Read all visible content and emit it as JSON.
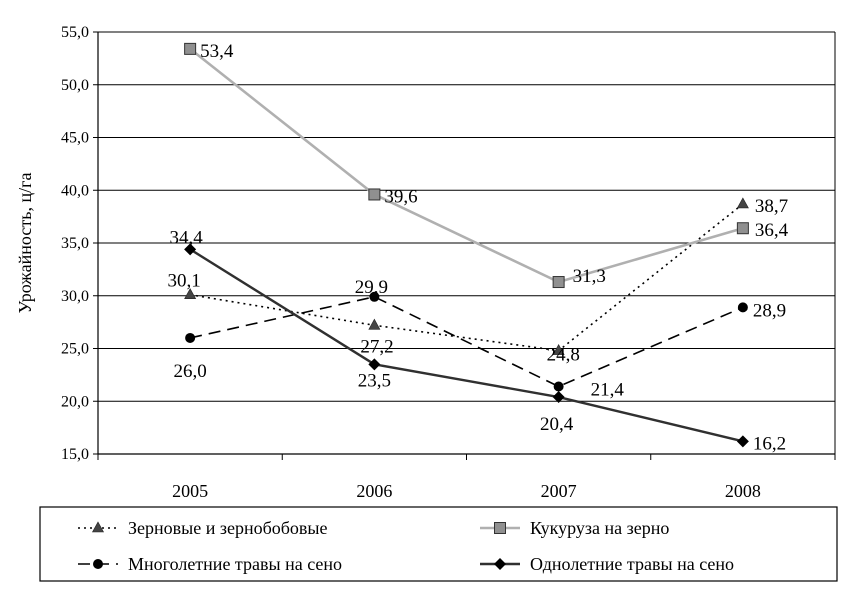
{
  "chart_data": {
    "type": "line",
    "title": "",
    "xlabel": "",
    "ylabel": "Урожайность, ц/га",
    "categories": [
      "2005",
      "2006",
      "2007",
      "2008"
    ],
    "ylim": [
      15,
      55
    ],
    "yticks": [
      "15,0",
      "20,0",
      "25,0",
      "30,0",
      "35,0",
      "40,0",
      "45,0",
      "50,0",
      "55,0"
    ],
    "grid": "horizontal",
    "legend_position": "bottom",
    "series": [
      {
        "name": "Зерновые и зернобобовые",
        "values": [
          30.1,
          27.2,
          24.8,
          38.7
        ],
        "labels": [
          "30,1",
          "27,2",
          "24,8",
          "38,7"
        ],
        "color": "#000000",
        "line_style": "dotted",
        "marker": "triangle",
        "marker_color": "#444444"
      },
      {
        "name": "Кукуруза на зерно",
        "values": [
          53.4,
          39.6,
          31.3,
          36.4
        ],
        "labels": [
          "53,4",
          "39,6",
          "31,3",
          "36,4"
        ],
        "color": "#b0b0b0",
        "line_style": "solid",
        "marker": "square",
        "marker_color": "#909090"
      },
      {
        "name": "Многолетние травы на сено",
        "values": [
          26.0,
          29.9,
          21.4,
          28.9
        ],
        "labels": [
          "26,0",
          "29,9",
          "21,4",
          "28,9"
        ],
        "color": "#000000",
        "line_style": "dashed",
        "marker": "circle",
        "marker_color": "#000000"
      },
      {
        "name": "Однолетние травы на сено",
        "values": [
          34.4,
          23.5,
          20.4,
          16.2
        ],
        "labels": [
          "34,4",
          "23,5",
          "20,4",
          "16,2"
        ],
        "color": "#303030",
        "line_style": "solid",
        "marker": "diamond",
        "marker_color": "#000000"
      }
    ]
  }
}
